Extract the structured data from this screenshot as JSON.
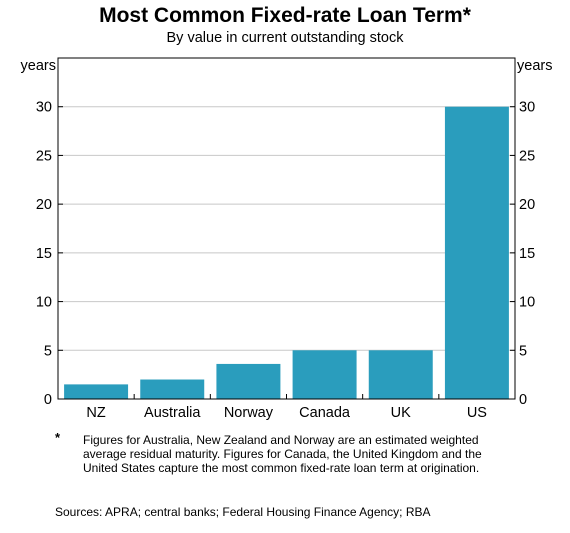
{
  "chart_data": {
    "type": "bar",
    "title": "Most Common Fixed-rate Loan Term*",
    "subtitle": "By value in current outstanding stock",
    "ylabel_left": "years",
    "ylabel_right": "years",
    "categories": [
      "NZ",
      "Australia",
      "Norway",
      "Canada",
      "UK",
      "US"
    ],
    "values": [
      1.5,
      2.0,
      3.6,
      5.0,
      5.0,
      30.0
    ],
    "ylim": [
      0,
      35
    ],
    "yticks": [
      0,
      5,
      10,
      15,
      20,
      25,
      30
    ],
    "grid": true,
    "bar_color": "#2a9dbd"
  },
  "notes": {
    "marker": "*",
    "text": "Figures for Australia, New Zealand and Norway are an estimated weighted average residual maturity. Figures for Canada, the United Kingdom and the United States capture the most common fixed-rate loan term at origination.",
    "sources": "Sources: APRA; central banks; Federal Housing Finance Agency; RBA"
  }
}
